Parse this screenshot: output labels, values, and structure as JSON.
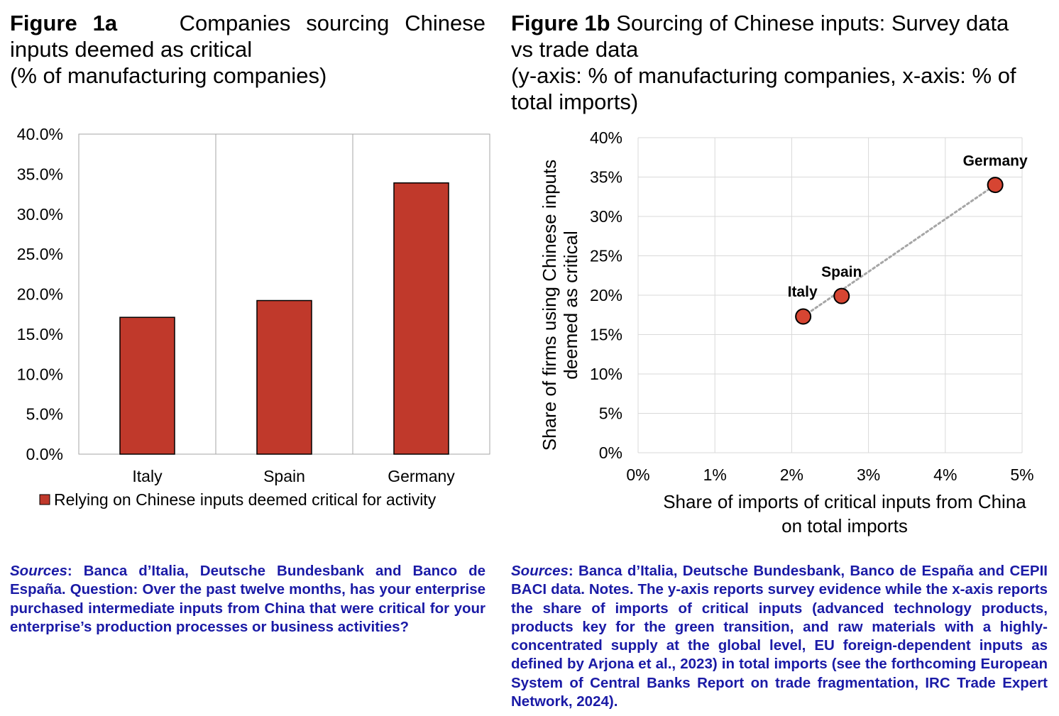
{
  "figure_a": {
    "label": "Figure 1a",
    "title_lines": [
      "Companies sourcing Chinese",
      "inputs deemed as critical",
      "(% of manufacturing companies)"
    ],
    "legend": "Relying on Chinese inputs deemed critical for activity",
    "source_label": "Sources",
    "source_text": ": Banca d’Italia, Deutsche Bundesbank and Banco de España. Question: Over the past twelve months, has your enterprise purchased intermediate inputs from China that were critical for your enterprise’s production processes or business activities?"
  },
  "figure_b": {
    "label": "Figure 1b",
    "title_lines": [
      "Sourcing of Chinese inputs: Survey data",
      "vs trade data",
      "(y-axis: % of manufacturing companies, x-axis: % of",
      "total imports)"
    ],
    "source_label": "Sources",
    "source_text": ": Banca d’Italia, Deutsche Bundesbank, Banco de España and CEPII BACI data. Notes. The y-axis reports survey evidence while the x-axis reports the share of imports of critical inputs (advanced technology products, products key for the green transition, and raw materials with a highly-concentrated supply at the global level, EU foreign-dependent inputs as defined by Arjona et al., 2023) in total imports  (see the forthcoming European System of Central Banks Report on trade fragmentation, IRC Trade Expert Network, 2024)."
  },
  "chart_data": [
    {
      "type": "bar",
      "categories": [
        "Italy",
        "Spain",
        "Germany"
      ],
      "series": [
        {
          "name": "Relying on Chinese inputs deemed critical for activity",
          "values": [
            17.1,
            19.2,
            33.9
          ],
          "color": "#c0392b"
        }
      ],
      "ylim": [
        0,
        40
      ],
      "yticks": [
        "0.0%",
        "5.0%",
        "10.0%",
        "15.0%",
        "20.0%",
        "25.0%",
        "30.0%",
        "35.0%",
        "40.0%"
      ],
      "grid": "vertical category separators",
      "legend_position": "bottom"
    },
    {
      "type": "scatter",
      "points": [
        {
          "label": "Italy",
          "x": 2.15,
          "y": 17.3
        },
        {
          "label": "Spain",
          "x": 2.65,
          "y": 19.9
        },
        {
          "label": "Germany",
          "x": 4.65,
          "y": 34.0
        }
      ],
      "xlim": [
        0,
        5
      ],
      "ylim": [
        0,
        40
      ],
      "xticks": [
        "0%",
        "1%",
        "2%",
        "3%",
        "4%",
        "5%"
      ],
      "yticks": [
        "0%",
        "5%",
        "10%",
        "15%",
        "20%",
        "25%",
        "30%",
        "35%",
        "40%"
      ],
      "xlabel_lines": [
        "Share of imports of critical inputs from China",
        "on total imports"
      ],
      "ylabel_lines": [
        "Share of firms using Chinese inputs",
        "deemed as critical"
      ],
      "trendline": "dotted",
      "grid": true,
      "marker_color": "#d64532"
    }
  ]
}
